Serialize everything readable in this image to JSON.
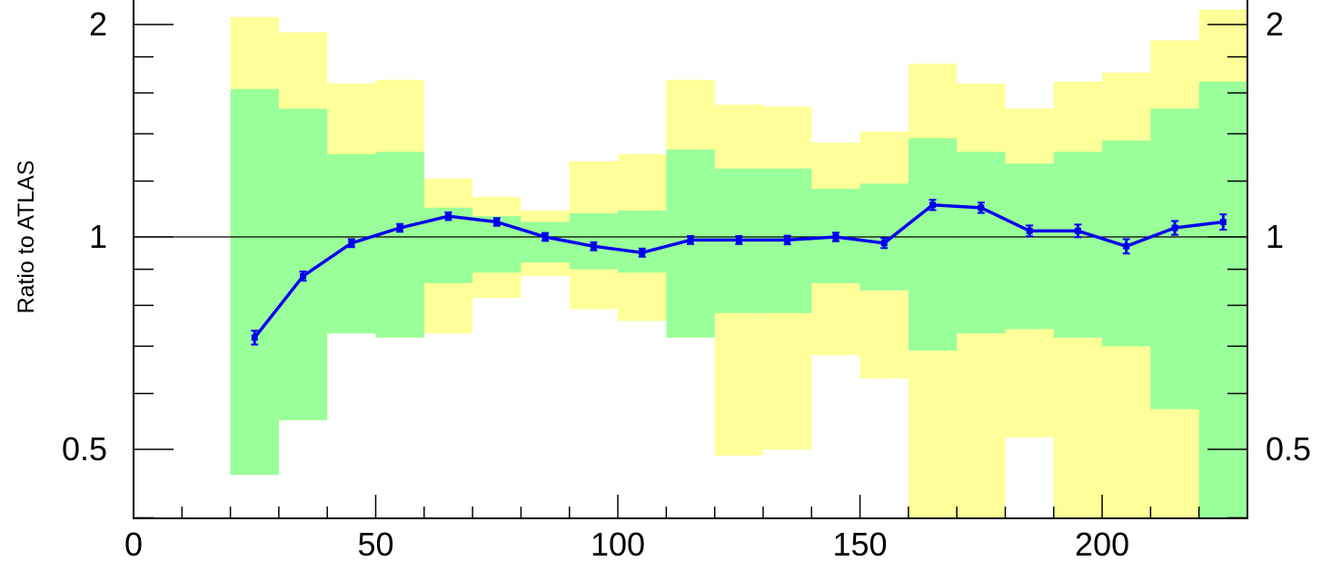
{
  "chart_data": {
    "type": "line",
    "ylabel": "Ratio to ATLAS",
    "xlabel": "",
    "xlim": [
      0,
      230
    ],
    "ylim": [
      0.35,
      2.1
    ],
    "y_scale": "log",
    "x_ticks": [
      0,
      50,
      100,
      150,
      200
    ],
    "x_tick_labels": [
      "0",
      "50",
      "100",
      "150",
      "200"
    ],
    "y_ticks": [
      0.5,
      1,
      2
    ],
    "y_tick_labels": [
      "0.5",
      "1",
      "2"
    ],
    "reference_line": 1,
    "grid": false,
    "bins": [
      [
        20,
        30
      ],
      [
        30,
        40
      ],
      [
        40,
        50
      ],
      [
        50,
        60
      ],
      [
        60,
        70
      ],
      [
        70,
        80
      ],
      [
        80,
        90
      ],
      [
        90,
        100
      ],
      [
        100,
        110
      ],
      [
        110,
        120
      ],
      [
        120,
        130
      ],
      [
        130,
        140
      ],
      [
        140,
        150
      ],
      [
        150,
        160
      ],
      [
        160,
        170
      ],
      [
        170,
        180
      ],
      [
        180,
        190
      ],
      [
        190,
        200
      ],
      [
        200,
        210
      ],
      [
        210,
        220
      ],
      [
        220,
        230
      ]
    ],
    "band_outer": {
      "color": "#ffff99",
      "low": [
        0.46,
        0.55,
        0.73,
        0.72,
        0.73,
        0.82,
        0.88,
        0.79,
        0.76,
        0.72,
        0.49,
        0.5,
        0.68,
        0.63,
        0.2,
        0.2,
        0.52,
        0.2,
        0.2,
        0.2,
        0.2
      ],
      "high": [
        2.05,
        1.95,
        1.65,
        1.67,
        1.21,
        1.14,
        1.09,
        1.28,
        1.31,
        1.67,
        1.54,
        1.53,
        1.36,
        1.41,
        1.76,
        1.65,
        1.52,
        1.66,
        1.71,
        1.9,
        2.1
      ]
    },
    "band_inner": {
      "color": "#99ff99",
      "low": [
        0.46,
        0.55,
        0.73,
        0.72,
        0.86,
        0.89,
        0.92,
        0.9,
        0.89,
        0.72,
        0.78,
        0.78,
        0.86,
        0.84,
        0.69,
        0.73,
        0.74,
        0.72,
        0.7,
        0.57,
        0.39
      ],
      "high": [
        1.62,
        1.52,
        1.31,
        1.32,
        1.1,
        1.07,
        1.05,
        1.08,
        1.09,
        1.33,
        1.25,
        1.25,
        1.17,
        1.19,
        1.38,
        1.32,
        1.27,
        1.32,
        1.37,
        1.52,
        1.66
      ]
    },
    "series": [
      {
        "color": "#0000ee",
        "x": [
          25,
          35,
          45,
          55,
          65,
          75,
          85,
          95,
          105,
          115,
          125,
          135,
          145,
          155,
          165,
          175,
          185,
          195,
          205,
          215,
          225
        ],
        "y": [
          0.72,
          0.88,
          0.98,
          1.03,
          1.07,
          1.05,
          1.0,
          0.97,
          0.95,
          0.99,
          0.99,
          0.99,
          1.0,
          0.98,
          1.11,
          1.1,
          1.02,
          1.02,
          0.97,
          1.03,
          1.05
        ],
        "err": [
          0.012,
          0.008,
          0.007,
          0.007,
          0.007,
          0.007,
          0.007,
          0.007,
          0.007,
          0.007,
          0.007,
          0.008,
          0.008,
          0.01,
          0.012,
          0.012,
          0.012,
          0.015,
          0.017,
          0.017,
          0.02
        ]
      }
    ]
  }
}
